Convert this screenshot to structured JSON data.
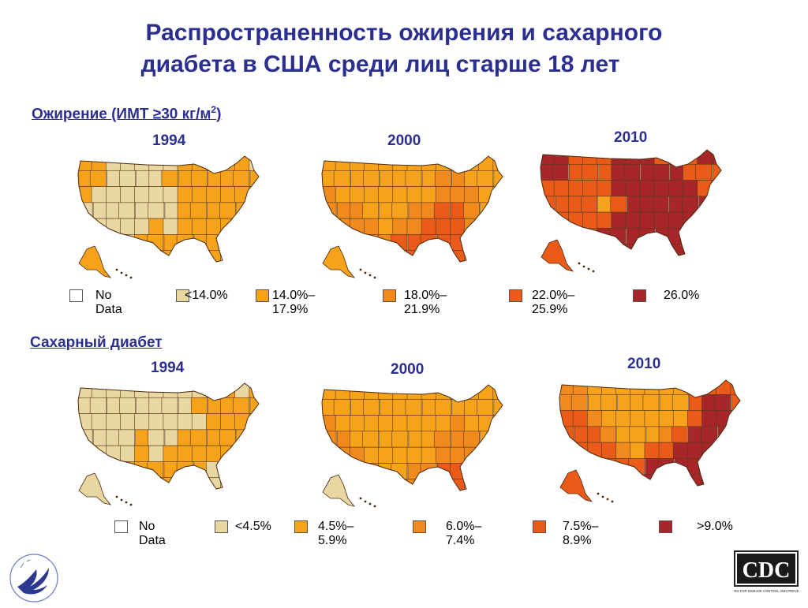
{
  "title_line1": "Распространенность ожирения и сахарного",
  "title_line2": "диабета в США среди лиц старше 18 лет",
  "obesity": {
    "heading": "Ожирение (ИМТ ≥30 кг/м",
    "heading_sup": "2",
    "heading_tail": ")",
    "years": [
      "1994",
      "2000",
      "2010"
    ],
    "legend": [
      {
        "label": "No Data",
        "color": "#ffffff"
      },
      {
        "label": "<14.0%",
        "color": "#e9d7a2"
      },
      {
        "label": "14.0%–17.9%",
        "color": "#f7a21b"
      },
      {
        "label": "18.0%–21.9%",
        "color": "#f08a1c"
      },
      {
        "label": "22.0%–25.9%",
        "color": "#ea5a19"
      },
      {
        "label": "26.0%",
        "color": "#a6262a"
      }
    ]
  },
  "diabetes": {
    "heading": "Сахарный диабет",
    "years": [
      "1994",
      "2000",
      "2010"
    ],
    "legend": [
      {
        "label": "No Data",
        "color": "#ffffff"
      },
      {
        "label": "<4.5%",
        "color": "#e9d7a2"
      },
      {
        "label": "4.5%–5.9%",
        "color": "#f7a21b"
      },
      {
        "label": "6.0%–7.4%",
        "color": "#f08a1c"
      },
      {
        "label": "7.5%–8.9%",
        "color": "#ea5a19"
      },
      {
        "label": ">9.0%",
        "color": "#a6262a"
      }
    ]
  },
  "logos": {
    "cdc_text": "CDC",
    "cdc_subtext": "CENTERS FOR DISEASE CONTROL AND PREVENTION"
  }
}
